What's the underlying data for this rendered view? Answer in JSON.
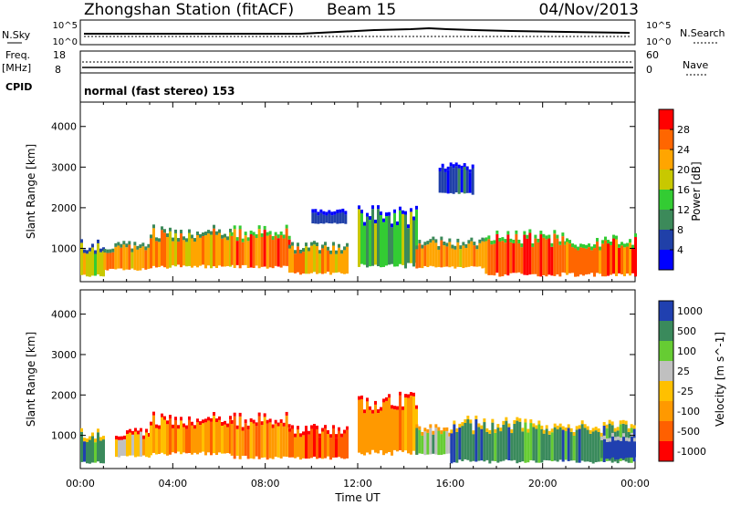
{
  "header": {
    "station": "Zhongshan Station (fitACF)",
    "beam": "Beam 15",
    "date": "04/Nov/2013"
  },
  "top_panels": {
    "nsky_label": "N.Sky",
    "nsky_ticks": [
      "10^5",
      "10^0"
    ],
    "nsearch_label": "N.Search",
    "nsearch_ticks": [
      "10^5",
      "10^0"
    ],
    "freq_label": "Freq.",
    "freq_unit": "[MHz]",
    "freq_ticks": [
      "18",
      "8"
    ],
    "nave_label": "Nave",
    "nave_ticks": [
      "60",
      "0"
    ],
    "cpid_label": "CPID",
    "cpid_text": "normal (fast stereo) 153"
  },
  "colors": {
    "power": [
      "#0000ff",
      "#2040a8",
      "#3c8a5a",
      "#33cc33",
      "#c8c800",
      "#ffa500",
      "#ff6600",
      "#ff0000"
    ],
    "velocity": [
      "#ff0000",
      "#ff6000",
      "#ff9900",
      "#ffc000",
      "#c0c0c0",
      "#66cc33",
      "#3a8a5c",
      "#2040b0"
    ]
  },
  "chart_data": [
    {
      "type": "heatmap",
      "title": "",
      "xlabel": "",
      "ylabel": "Slant Range [km]",
      "xlim": [
        0,
        24
      ],
      "ylim": [
        180,
        4600
      ],
      "x_tick_labels": [
        "00:00",
        "04:00",
        "08:00",
        "12:00",
        "16:00",
        "20:00",
        "00:00"
      ],
      "y_ticks": [
        1000,
        2000,
        3000,
        4000
      ],
      "y_tick_labels": [
        "1000",
        "2000",
        "3000",
        "4000"
      ],
      "colorbar_label": "Power [dB]",
      "colorbar_levels": [
        0,
        4,
        8,
        12,
        16,
        20,
        24,
        28,
        32
      ],
      "colorbar_labels": [
        "4",
        "8",
        "12",
        "16",
        "20",
        "24",
        "28"
      ],
      "regions": [
        {
          "t0": 0.0,
          "t1": 1.0,
          "r0": 300,
          "r1": 1150,
          "level": 4
        },
        {
          "t0": 1.0,
          "t1": 3.0,
          "r0": 450,
          "r1": 1100,
          "level": 5
        },
        {
          "t0": 3.0,
          "t1": 6.5,
          "r0": 500,
          "r1": 1500,
          "level": 5
        },
        {
          "t0": 6.5,
          "t1": 9.0,
          "r0": 500,
          "r1": 1500,
          "level": 6
        },
        {
          "t0": 9.0,
          "t1": 11.5,
          "r0": 350,
          "r1": 1100,
          "level": 5
        },
        {
          "t0": 10.0,
          "t1": 11.5,
          "r0": 1600,
          "r1": 1900,
          "level": 1
        },
        {
          "t0": 12.0,
          "t1": 14.5,
          "r0": 500,
          "r1": 2000,
          "level": 3
        },
        {
          "t0": 14.5,
          "t1": 17.5,
          "r0": 500,
          "r1": 1200,
          "level": 5
        },
        {
          "t0": 15.5,
          "t1": 17.0,
          "r0": 2300,
          "r1": 3100,
          "level": 1
        },
        {
          "t0": 17.5,
          "t1": 21.0,
          "r0": 300,
          "r1": 1400,
          "level": 6
        },
        {
          "t0": 21.0,
          "t1": 24.0,
          "r0": 300,
          "r1": 1300,
          "level": 6
        }
      ]
    },
    {
      "type": "heatmap",
      "title": "",
      "xlabel": "Time UT",
      "ylabel": "Slant Range [km]",
      "xlim": [
        0,
        24
      ],
      "ylim": [
        180,
        4600
      ],
      "x_tick_labels": [
        "00:00",
        "04:00",
        "08:00",
        "12:00",
        "16:00",
        "20:00",
        "00:00"
      ],
      "y_ticks": [
        1000,
        2000,
        3000,
        4000
      ],
      "y_tick_labels": [
        "1000",
        "2000",
        "3000",
        "4000"
      ],
      "colorbar_label": "Velocity [m s^-1]",
      "colorbar_labels": [
        "1000",
        "500",
        "100",
        "25",
        "-25",
        "-100",
        "-500",
        "-1000"
      ],
      "regions": [
        {
          "t0": 0.0,
          "t1": 1.0,
          "r0": 300,
          "r1": 1100,
          "level": 6
        },
        {
          "t0": 1.5,
          "t1": 3.0,
          "r0": 450,
          "r1": 1100,
          "level": 3
        },
        {
          "t0": 3.0,
          "t1": 6.5,
          "r0": 500,
          "r1": 1500,
          "level": 2
        },
        {
          "t0": 6.5,
          "t1": 9.0,
          "r0": 400,
          "r1": 1500,
          "level": 2
        },
        {
          "t0": 9.0,
          "t1": 11.5,
          "r0": 400,
          "r1": 1200,
          "level": 1
        },
        {
          "t0": 12.0,
          "t1": 14.5,
          "r0": 500,
          "r1": 2000,
          "level": 2
        },
        {
          "t0": 14.5,
          "t1": 16.0,
          "r0": 500,
          "r1": 1200,
          "level": 5
        },
        {
          "t0": 16.0,
          "t1": 20.0,
          "r0": 300,
          "r1": 1400,
          "level": 6
        },
        {
          "t0": 20.0,
          "t1": 24.0,
          "r0": 300,
          "r1": 1300,
          "level": 6
        },
        {
          "t0": 22.5,
          "t1": 24.0,
          "r0": 400,
          "r1": 1000,
          "level": 7
        }
      ]
    }
  ]
}
